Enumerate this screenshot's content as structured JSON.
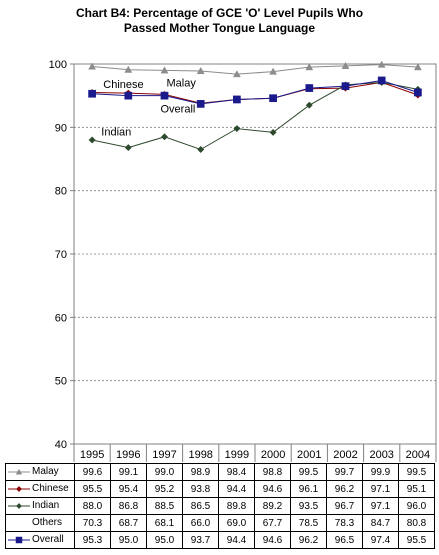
{
  "title_line1": "Chart B4: Percentage of GCE 'O' Level Pupils Who",
  "title_line2": "Passed Mother Tongue Language",
  "chart_data": {
    "type": "line",
    "title": "Chart B4: Percentage of GCE 'O' Level Pupils Who Passed Mother Tongue Language",
    "x": [
      "1995",
      "1996",
      "1997",
      "1998",
      "1999",
      "2000",
      "2001",
      "2002",
      "2003",
      "2004"
    ],
    "ylim": [
      40,
      100
    ],
    "yticks": [
      40,
      50,
      60,
      70,
      80,
      90,
      100
    ],
    "grid": "horizontal dashed",
    "legend": "data table below chart",
    "series": [
      {
        "name": "Malay",
        "values": [
          99.6,
          99.1,
          99.0,
          98.9,
          98.4,
          98.8,
          99.5,
          99.7,
          99.9,
          99.5
        ],
        "color": "#8c8c8c",
        "marker": "triangle",
        "plotted": true
      },
      {
        "name": "Chinese",
        "values": [
          95.5,
          95.4,
          95.2,
          93.8,
          94.4,
          94.6,
          96.1,
          96.2,
          97.1,
          95.1
        ],
        "color": "#8b0000",
        "marker": "diamond",
        "plotted": true
      },
      {
        "name": "Indian",
        "values": [
          88.0,
          86.8,
          88.5,
          86.5,
          89.8,
          89.2,
          93.5,
          96.7,
          97.1,
          96.0
        ],
        "color": "#2e4a2e",
        "marker": "diamond",
        "plotted": true
      },
      {
        "name": "Others",
        "values": [
          70.3,
          68.7,
          68.1,
          66.0,
          69.0,
          67.7,
          78.5,
          78.3,
          84.7,
          80.8
        ],
        "color": "#000000",
        "marker": "none",
        "plotted": false
      },
      {
        "name": "Overall",
        "values": [
          95.3,
          95.0,
          95.0,
          93.7,
          94.4,
          94.6,
          96.2,
          96.5,
          97.4,
          95.5
        ],
        "color": "#1a1a8c",
        "marker": "square",
        "plotted": true
      }
    ],
    "inline_labels": [
      {
        "text": "Malay",
        "series": "Malay"
      },
      {
        "text": "Chinese",
        "series": "Chinese"
      },
      {
        "text": "Overall",
        "series": "Overall"
      },
      {
        "text": "Indian",
        "series": "Indian"
      }
    ]
  }
}
